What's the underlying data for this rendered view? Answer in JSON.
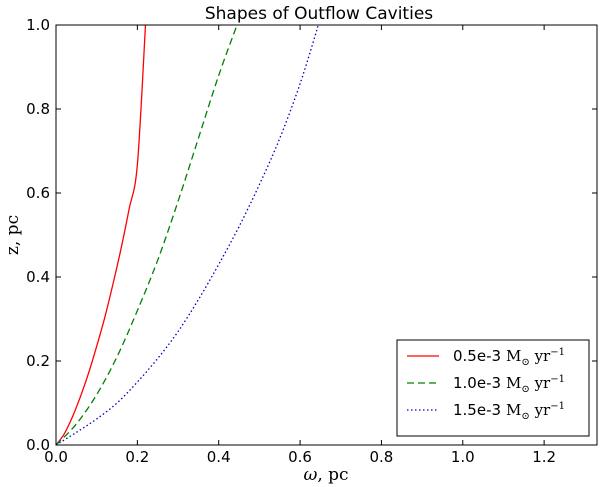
{
  "chart_data": {
    "type": "line",
    "title": "Shapes of Outflow Cavities",
    "xlabel_symbol": "ω",
    "xlabel_unit": ", pc",
    "ylabel": "z, pc",
    "xlim": [
      0.0,
      1.33
    ],
    "ylim": [
      0.0,
      1.0
    ],
    "xticks": [
      0.0,
      0.2,
      0.4,
      0.6,
      0.8,
      1.0,
      1.2
    ],
    "xtick_labels": [
      "0.0",
      "0.2",
      "0.4",
      "0.6",
      "0.8",
      "1.0",
      "1.2"
    ],
    "yticks": [
      0.0,
      0.2,
      0.4,
      0.6,
      0.8,
      1.0
    ],
    "ytick_labels": [
      "0.0",
      "0.2",
      "0.4",
      "0.6",
      "0.8",
      "1.0"
    ],
    "grid": false,
    "legend_position": "lower-right",
    "series": [
      {
        "name": "0.5e-3",
        "legend_value": "0.5e-3",
        "legend_unit": "M",
        "legend_sub": "⊙",
        "legend_unit2": " yr",
        "legend_sup": "−1",
        "color": "#ff0000",
        "dash": "solid",
        "x": [
          0.0,
          0.02,
          0.04,
          0.06,
          0.08,
          0.1,
          0.12,
          0.14,
          0.16,
          0.18,
          0.2,
          0.22
        ],
        "y": [
          0.0,
          0.026,
          0.066,
          0.115,
          0.171,
          0.235,
          0.304,
          0.383,
          0.468,
          0.563,
          0.667,
          1.0
        ]
      },
      {
        "name": "1.0e-3",
        "legend_value": "1.0e-3",
        "legend_unit": "M",
        "legend_sub": "⊙",
        "legend_unit2": " yr",
        "legend_sup": "−1",
        "color": "#008000",
        "dash": "dashed",
        "x": [
          0.0,
          0.05,
          0.1,
          0.15,
          0.2,
          0.25,
          0.3,
          0.35,
          0.4,
          0.445
        ],
        "y": [
          0.0,
          0.05,
          0.12,
          0.21,
          0.32,
          0.44,
          0.58,
          0.73,
          0.88,
          1.0
        ]
      },
      {
        "name": "1.5e-3",
        "legend_value": "1.5e-3",
        "legend_unit": "M",
        "legend_sub": "⊙",
        "legend_unit2": " yr",
        "legend_sup": "−1",
        "color": "#0000bf",
        "dash": "dotted",
        "x": [
          0.0,
          0.05,
          0.1,
          0.15,
          0.2,
          0.25,
          0.3,
          0.35,
          0.4,
          0.45,
          0.5,
          0.55,
          0.6,
          0.645
        ],
        "y": [
          0.0,
          0.03,
          0.062,
          0.1,
          0.15,
          0.206,
          0.27,
          0.346,
          0.43,
          0.52,
          0.62,
          0.73,
          0.86,
          1.0
        ]
      }
    ]
  }
}
